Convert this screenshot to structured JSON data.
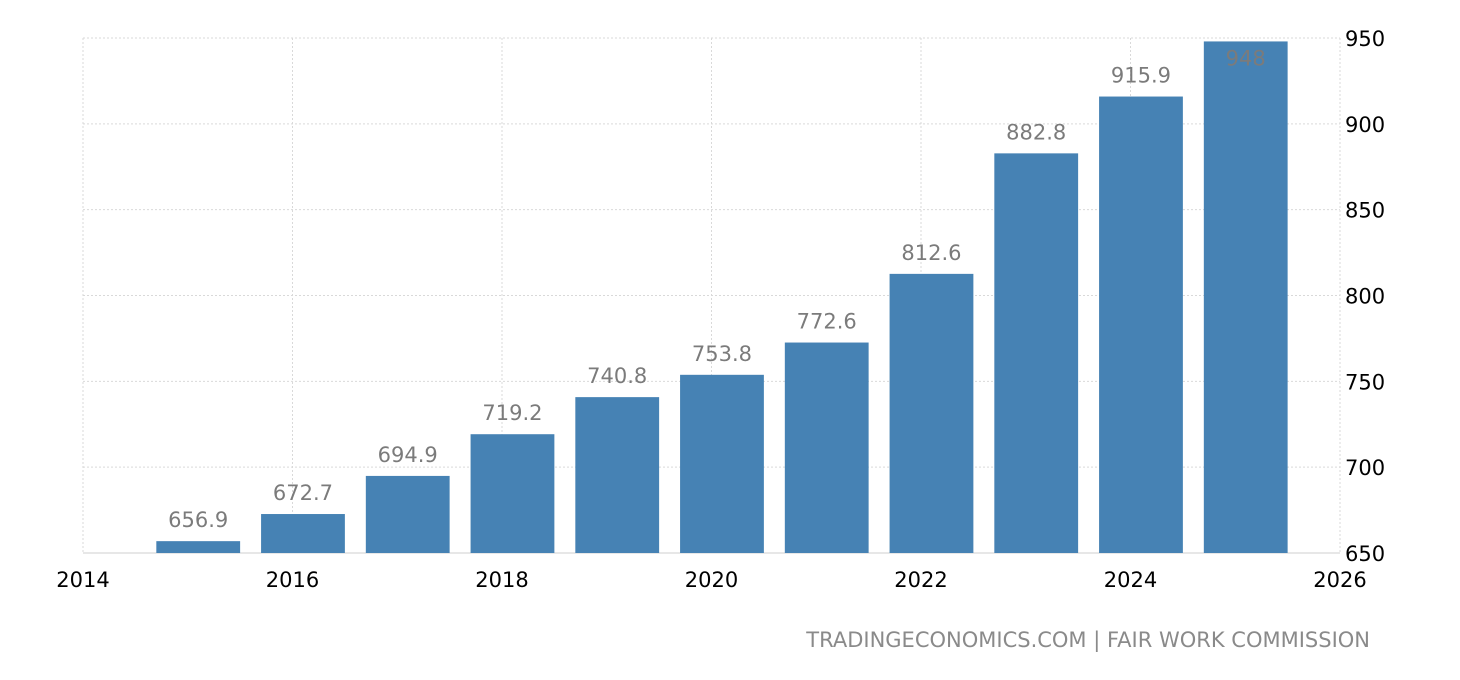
{
  "chart_data": {
    "type": "bar",
    "x": [
      2015,
      2016,
      2017,
      2018,
      2019,
      2020,
      2021,
      2022,
      2023,
      2024,
      2025
    ],
    "values": [
      656.9,
      672.7,
      694.9,
      719.2,
      740.8,
      753.8,
      772.6,
      812.6,
      882.8,
      915.9,
      948
    ],
    "value_labels": [
      "656.9",
      "672.7",
      "694.9",
      "719.2",
      "740.8",
      "753.8",
      "772.6",
      "812.6",
      "882.8",
      "915.9",
      "948"
    ],
    "xlim": [
      2014,
      2026
    ],
    "ylim": [
      650,
      950
    ],
    "x_ticks": [
      "2014",
      "2016",
      "2018",
      "2020",
      "2022",
      "2024",
      "2026"
    ],
    "y_ticks": [
      "950",
      "900",
      "850",
      "800",
      "750",
      "700",
      "650"
    ],
    "y_axis_position": "right",
    "grid": true,
    "bar_color": "#4682b4",
    "source": "TRADINGECONOMICS.COM | FAIR WORK COMMISSION"
  }
}
